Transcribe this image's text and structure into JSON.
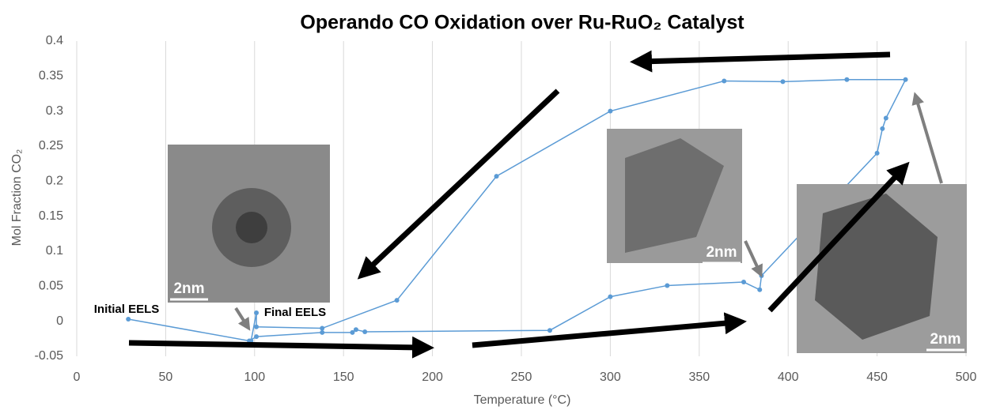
{
  "chart_data": {
    "type": "line",
    "title": "Operando CO Oxidation over Ru-RuO₂ Catalyst",
    "x_label": "Temperature (°C)",
    "y_label": "Mol Fraction CO₂",
    "xlim": [
      0,
      500
    ],
    "ylim": [
      -0.05,
      0.4
    ],
    "xticks": [
      0,
      50,
      100,
      150,
      200,
      250,
      300,
      350,
      400,
      450,
      500
    ],
    "yticks": [
      -0.05,
      0,
      0.05,
      0.1,
      0.15,
      0.2,
      0.25,
      0.3,
      0.35,
      0.4
    ],
    "grid": true,
    "color": "#5b9bd5",
    "x": [
      29,
      97,
      101,
      138,
      155,
      157,
      162,
      266,
      300,
      332,
      375,
      384,
      385,
      450,
      453,
      455,
      466,
      433,
      397,
      364,
      300,
      236,
      180,
      138,
      101,
      101,
      98
    ],
    "values": [
      0.003,
      -0.028,
      -0.022,
      -0.016,
      -0.016,
      -0.012,
      -0.015,
      -0.013,
      0.035,
      0.051,
      0.056,
      0.045,
      0.065,
      0.24,
      0.275,
      0.29,
      0.345,
      0.345,
      0.342,
      0.343,
      0.3,
      0.207,
      0.03,
      -0.01,
      -0.008,
      0.012,
      -0.028
    ],
    "annotations": [
      "Initial EELS",
      "Final EELS",
      "2nm",
      "2nm",
      "2nm"
    ]
  }
}
